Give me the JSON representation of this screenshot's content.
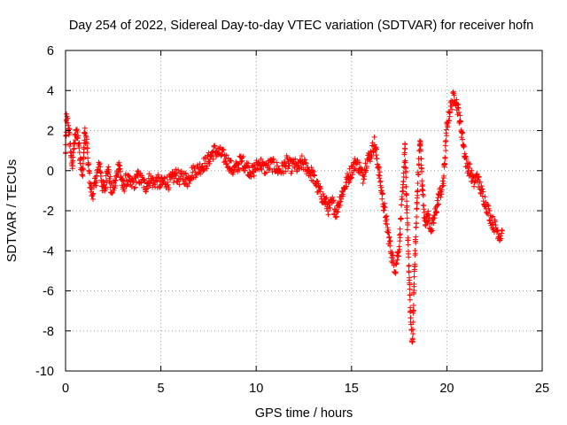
{
  "chart_data": {
    "type": "scatter",
    "title": "Day 254 of 2022, Sidereal Day-to-day VTEC variation (SDTVAR) for receiver hofn",
    "xlabel": "GPS time / hours",
    "ylabel": "SDTVAR / TECUs",
    "xlim": [
      0,
      25
    ],
    "ylim": [
      -10,
      6
    ],
    "grid": true,
    "x_ticks": [
      0,
      5,
      10,
      15,
      20,
      25
    ],
    "x_tick_labels": [
      "0",
      "5",
      "10",
      "15",
      "20",
      "25"
    ],
    "y_ticks": [
      -10,
      -8,
      -6,
      -4,
      -2,
      0,
      2,
      4,
      6
    ],
    "y_tick_labels": [
      "-10",
      "-8",
      "-6",
      "-4",
      "-2",
      "0",
      "2",
      "4",
      "6"
    ],
    "marker": "plus",
    "color": "#ff0000",
    "series": [
      {
        "name": "SDTVAR",
        "x": [
          0.0,
          0.05,
          0.1,
          0.15,
          0.2,
          0.25,
          0.3,
          0.35,
          0.4,
          0.5,
          0.6,
          0.7,
          0.8,
          0.9,
          1.0,
          1.1,
          1.2,
          1.3,
          1.4,
          1.5,
          1.6,
          1.7,
          1.8,
          1.9,
          2.0,
          2.1,
          2.2,
          2.4,
          2.6,
          2.8,
          3.0,
          3.2,
          3.4,
          3.6,
          3.8,
          4.0,
          4.2,
          4.4,
          4.6,
          4.8,
          5.0,
          5.2,
          5.4,
          5.6,
          5.8,
          6.0,
          6.2,
          6.4,
          6.6,
          6.8,
          7.0,
          7.2,
          7.4,
          7.6,
          7.8,
          8.0,
          8.2,
          8.4,
          8.6,
          8.8,
          9.0,
          9.2,
          9.4,
          9.6,
          9.8,
          10.0,
          10.2,
          10.4,
          10.6,
          10.8,
          11.0,
          11.2,
          11.4,
          11.6,
          11.8,
          12.0,
          12.2,
          12.4,
          12.6,
          12.8,
          13.0,
          13.2,
          13.4,
          13.6,
          13.8,
          14.0,
          14.2,
          14.4,
          14.6,
          14.8,
          15.0,
          15.2,
          15.4,
          15.6,
          15.8,
          16.0,
          16.2,
          16.4,
          16.6,
          16.8,
          17.0,
          17.1,
          17.2,
          17.3,
          17.4,
          17.5,
          17.6,
          17.7,
          17.8,
          17.9,
          18.0,
          18.1,
          18.2,
          18.3,
          18.4,
          18.5,
          18.6,
          18.7,
          18.8,
          18.9,
          19.0,
          19.2,
          19.4,
          19.6,
          19.8,
          20.0,
          20.2,
          20.4,
          20.6,
          20.8,
          21.0,
          21.2,
          21.4,
          21.6,
          21.8,
          22.0,
          22.2,
          22.4,
          22.6,
          22.8,
          22.9
        ],
        "y": [
          0.8,
          2.6,
          2.5,
          2.2,
          1.8,
          1.2,
          0.6,
          0.2,
          0.9,
          1.6,
          2.0,
          1.3,
          0.4,
          -0.3,
          1.9,
          1.5,
          0.2,
          -0.8,
          -1.2,
          -0.9,
          -0.4,
          0.0,
          0.3,
          -0.6,
          -1.0,
          -0.8,
          0.3,
          -1.0,
          -0.7,
          0.4,
          -0.9,
          -0.4,
          -0.7,
          -0.6,
          -0.3,
          -0.5,
          -0.8,
          -0.4,
          -0.6,
          -0.5,
          -0.7,
          -0.5,
          -0.6,
          -0.4,
          -0.2,
          -0.4,
          -0.3,
          -0.5,
          -0.1,
          0.0,
          0.1,
          0.3,
          0.4,
          0.7,
          1.0,
          0.9,
          0.8,
          0.6,
          0.3,
          0.0,
          0.2,
          0.5,
          0.3,
          0.1,
          -0.1,
          0.2,
          0.4,
          0.1,
          0.2,
          0.3,
          0.2,
          0.0,
          0.1,
          0.4,
          0.2,
          0.3,
          0.1,
          0.4,
          0.2,
          0.0,
          -0.3,
          -0.8,
          -1.2,
          -1.5,
          -1.9,
          -1.6,
          -2.1,
          -1.4,
          -0.9,
          -0.4,
          0.0,
          0.4,
          0.2,
          -0.3,
          0.5,
          0.8,
          1.4,
          0.2,
          -1.2,
          -2.4,
          -3.6,
          -4.2,
          -4.6,
          -4.9,
          -4.3,
          -3.8,
          -2.2,
          -0.9,
          1.2,
          -1.9,
          -4.5,
          -7.5,
          -8.6,
          -5.0,
          -2.5,
          0.0,
          1.5,
          -0.5,
          -2.0,
          -2.6,
          -2.2,
          -3.0,
          -2.1,
          -1.2,
          -0.8,
          2.2,
          3.2,
          3.8,
          3.0,
          1.8,
          0.4,
          0.0,
          -0.6,
          -0.3,
          -1.0,
          -1.5,
          -2.1,
          -2.6,
          -2.9,
          -3.3,
          -3.0
        ],
        "scatter_fill": {
          "noise": 0.35,
          "dense_steps_per_hour": 40
        }
      }
    ]
  }
}
